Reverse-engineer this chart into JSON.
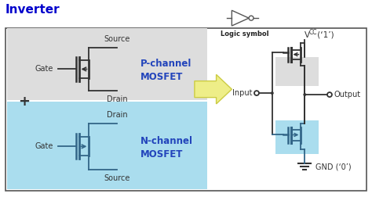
{
  "title": "Inverter",
  "logic_symbol_label": "Logic symbol",
  "bg_color": "#ffffff",
  "outer_box_color": "#555555",
  "p_box_color": "#dddddd",
  "n_box_color": "#aaddee",
  "p_label": "P-channel\nMOSFET",
  "n_label": "N-channel\nMOSFET",
  "p_label_color": "#2244bb",
  "n_label_color": "#2244bb",
  "p_source_label": "Source",
  "p_drain_label": "Drain",
  "n_drain_label": "Drain",
  "n_source_label": "Source",
  "gate_label": "Gate",
  "vcc_label": "V",
  "vcc_sub": "CC",
  "vcc_val": " (‘1’)",
  "gnd_label": "GND (‘0’)",
  "input_label": "Input",
  "output_label": "Output",
  "arrow_fill": "#eeee88",
  "arrow_edge": "#cccc44",
  "plus_label": "+",
  "title_color": "#0000cc",
  "title_fontsize": 11,
  "label_fontsize": 7,
  "small_fontsize": 6.5,
  "line_color_p": "#333333",
  "line_color_n": "#336688"
}
